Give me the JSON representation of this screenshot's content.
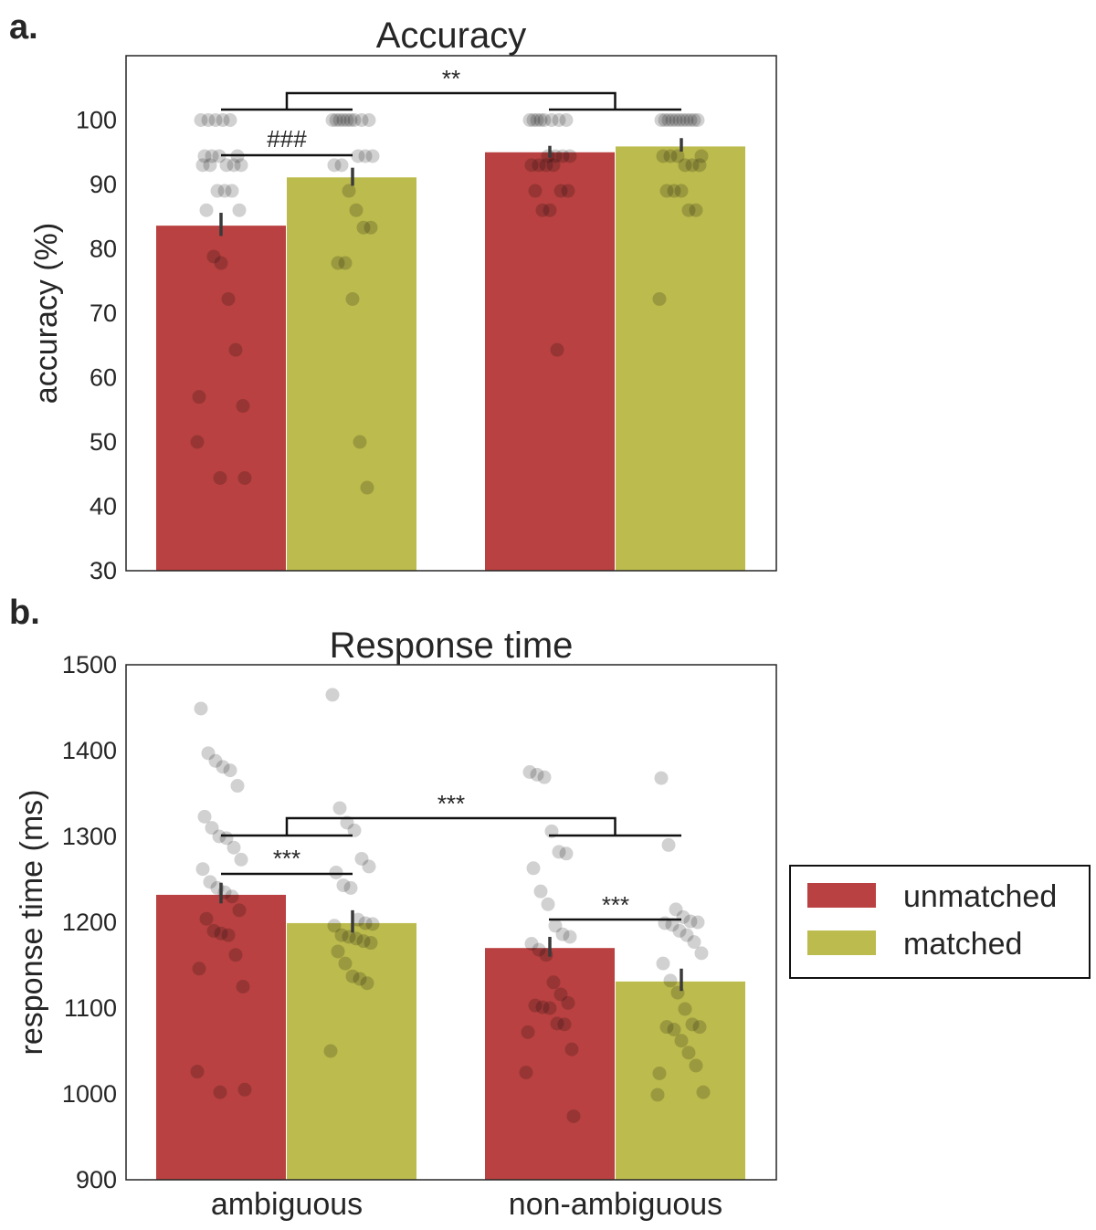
{
  "figure": {
    "panel_labels": [
      "a.",
      "b."
    ]
  },
  "chart_data": [
    {
      "type": "bar",
      "panel": "a.",
      "title": "Accuracy",
      "xlabel": "",
      "ylabel": "accuracy (%)",
      "ylim": [
        30,
        110
      ],
      "yticks": [
        30,
        40,
        50,
        60,
        70,
        80,
        90,
        100
      ],
      "grid": false,
      "categories": [
        "ambiguous",
        "non-ambiguous"
      ],
      "show_category_labels": false,
      "series": [
        {
          "name": "unmatched",
          "color": "#b94141",
          "values": [
            83.6,
            95.0
          ],
          "error_low": [
            82.0,
            94.2
          ],
          "error_high": [
            85.6,
            96.0
          ]
        },
        {
          "name": "matched",
          "color": "#bcbb4d",
          "values": [
            91.1,
            95.9
          ],
          "error_low": [
            89.8,
            95.1
          ],
          "error_high": [
            92.6,
            97.2
          ]
        }
      ],
      "points": [
        [
          [
            100,
            100,
            100,
            100,
            100,
            94.4,
            94.4,
            94.4,
            94.4,
            93,
            93,
            93,
            93,
            93,
            89,
            89,
            89,
            86,
            86,
            78.8,
            77.8,
            72.2,
            64.3,
            57,
            55.6,
            50,
            44.4,
            44.4
          ],
          [
            100,
            100,
            100,
            100,
            100,
            100,
            100,
            100,
            100,
            94.4,
            94.4,
            94.4,
            93,
            93,
            89,
            86,
            83.3,
            83.3,
            77.8,
            77.8,
            72.2,
            50,
            42.9
          ]
        ],
        [
          [
            100,
            100,
            100,
            100,
            100,
            100,
            100,
            100,
            94.4,
            94.4,
            94.4,
            94.4,
            93,
            93,
            93,
            93,
            89,
            89,
            89,
            86,
            86,
            64.3
          ],
          [
            100,
            100,
            100,
            100,
            100,
            100,
            100,
            100,
            100,
            100,
            100,
            94.4,
            94.4,
            94.4,
            94.4,
            93,
            93,
            93,
            89,
            89,
            89,
            86,
            86,
            72.2
          ]
        ]
      ],
      "significance": [
        {
          "label": "**",
          "between": "categories"
        },
        {
          "label": "###",
          "between": "series",
          "category": "ambiguous"
        }
      ]
    },
    {
      "type": "bar",
      "panel": "b.",
      "title": "Response time",
      "xlabel": "",
      "ylabel": "response time (ms)",
      "ylim": [
        900,
        1500
      ],
      "yticks": [
        900,
        1000,
        1100,
        1200,
        1300,
        1400,
        1500
      ],
      "grid": false,
      "categories": [
        "ambiguous",
        "non-ambiguous"
      ],
      "show_category_labels": true,
      "series": [
        {
          "name": "unmatched",
          "color": "#b94141",
          "values": [
            1232,
            1170
          ],
          "error_low": [
            1222,
            1160
          ],
          "error_high": [
            1246,
            1183
          ]
        },
        {
          "name": "matched",
          "color": "#bcbb4d",
          "values": [
            1199,
            1131
          ],
          "error_low": [
            1188,
            1120
          ],
          "error_high": [
            1214,
            1146
          ]
        }
      ],
      "points": [
        [
          [
            1449,
            1397,
            1388,
            1381,
            1377,
            1359,
            1323,
            1310,
            1300,
            1298,
            1287,
            1273,
            1262,
            1247,
            1240,
            1235,
            1230,
            1214,
            1204,
            1190,
            1187,
            1185,
            1162,
            1146,
            1125,
            1026,
            1005,
            1002
          ],
          [
            1465,
            1333,
            1316,
            1307,
            1274,
            1265,
            1258,
            1243,
            1240,
            1203,
            1199,
            1198,
            1196,
            1185,
            1183,
            1181,
            1178,
            1176,
            1166,
            1152,
            1137,
            1134,
            1129,
            1050
          ]
        ],
        [
          [
            1375,
            1372,
            1369,
            1306,
            1282,
            1280,
            1263,
            1236,
            1221,
            1196,
            1186,
            1183,
            1175,
            1168,
            1162,
            1130,
            1116,
            1106,
            1103,
            1101,
            1100,
            1082,
            1081,
            1072,
            1052,
            1025,
            974
          ],
          [
            1368,
            1290,
            1215,
            1206,
            1201,
            1200,
            1199,
            1197,
            1190,
            1185,
            1177,
            1164,
            1152,
            1132,
            1118,
            1099,
            1081,
            1078,
            1078,
            1075,
            1062,
            1048,
            1033,
            1024,
            1002,
            999
          ]
        ]
      ],
      "significance": [
        {
          "label": "***",
          "between": "categories"
        },
        {
          "label": "***",
          "between": "series",
          "category": "ambiguous"
        },
        {
          "label": "***",
          "between": "series",
          "category": "non-ambiguous"
        }
      ]
    }
  ],
  "legend": {
    "placement": "right",
    "items": [
      {
        "label": "unmatched",
        "color": "#b94141"
      },
      {
        "label": "matched",
        "color": "#bcbb4d"
      }
    ]
  },
  "colors": {
    "unmatched": "#b94141",
    "matched": "#bcbb4d",
    "points": "#000000",
    "axes": "#262626"
  }
}
